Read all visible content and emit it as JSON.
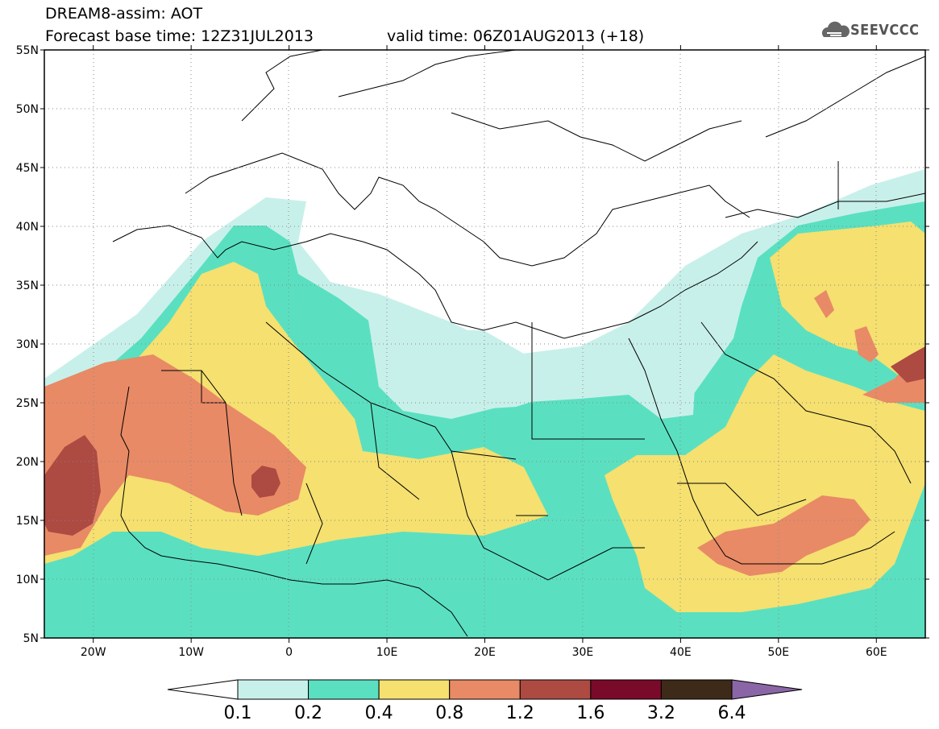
{
  "header": {
    "line1": "DREAM8-assim: AOT",
    "line2": "Forecast base time: 12Z31JUL2013",
    "line3": "valid time: 06Z01AUG2013 (+18)"
  },
  "logo": {
    "text": "SEEVCCC",
    "icon": "cloud-icon"
  },
  "map": {
    "lon_range": [
      -25,
      65
    ],
    "lat_range": [
      5,
      55
    ],
    "lat_ticks": [
      "5N",
      "10N",
      "15N",
      "20N",
      "25N",
      "30N",
      "35N",
      "40N",
      "45N",
      "50N",
      "55N"
    ],
    "lon_ticks": [
      "20W",
      "10W",
      "0",
      "10E",
      "20E",
      "30E",
      "40E",
      "50E",
      "60E"
    ],
    "field": "Aerosol optical thickness (AOT)",
    "grid": "dotted"
  },
  "colorbar": {
    "labels": [
      "0.1",
      "0.2",
      "0.4",
      "0.8",
      "1.2",
      "1.6",
      "3.2",
      "6.4"
    ],
    "colors": [
      "#c8f0ea",
      "#5ae0c0",
      "#f5e070",
      "#e88a66",
      "#ad4a42",
      "#7a0a2a",
      "#3d2a18",
      "#8a66a6"
    ]
  }
}
